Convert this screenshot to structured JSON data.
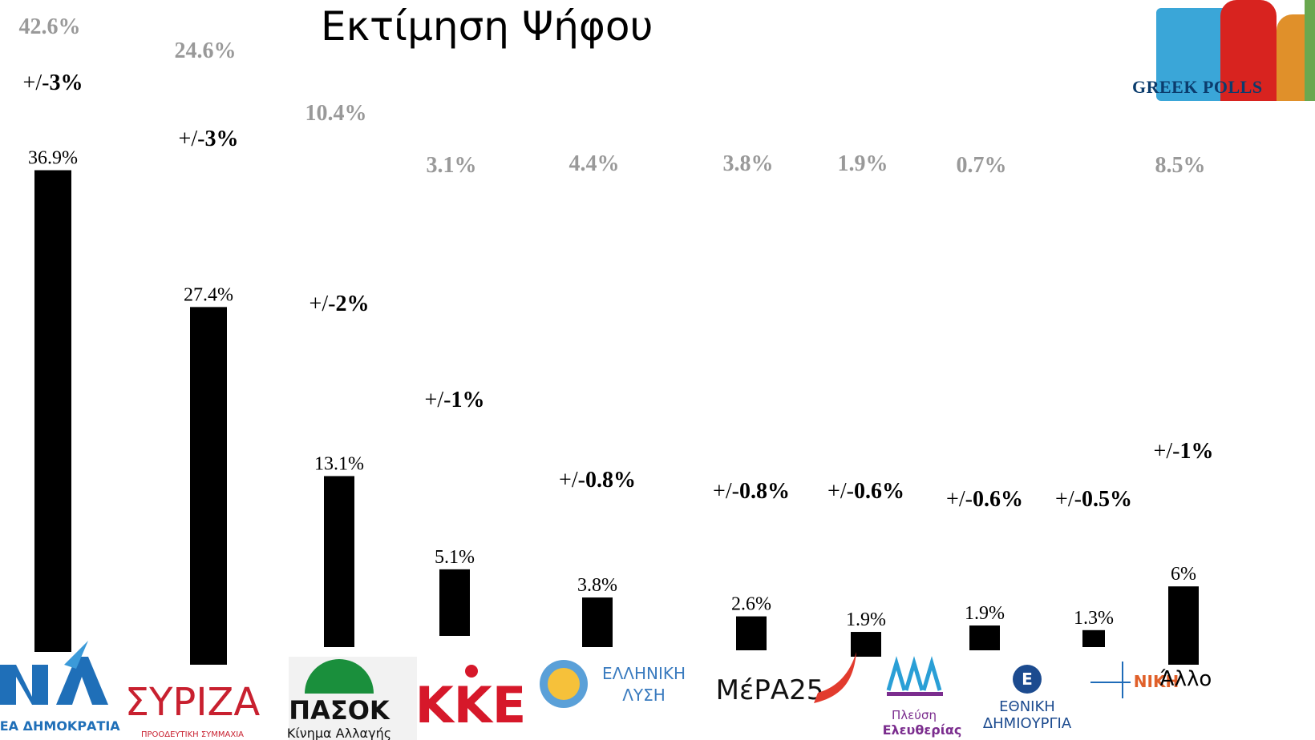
{
  "title": "Εκτίμηση Ψήφου",
  "brand": {
    "text": "GREEK POLLS"
  },
  "chart_data": {
    "type": "bar",
    "title": "Εκτίμηση Ψήφου",
    "categories": [
      "ΝΕΑ ΔΗΜΟΚΡΑΤΙΑ",
      "ΣΥΡΙΖΑ",
      "ΠΑΣΟΚ",
      "ΚΚΕ",
      "ΕΛΛΗΝΙΚΗ ΛΥΣΗ",
      "ΜέΡΑ25",
      "Πλεύση Ελευθερίας",
      "ΕΘΝΙΚΗ ΔΗΜΙΟΥΡΓΙΑ",
      "ΝΙΚΗ",
      "Άλλο"
    ],
    "values": [
      36.9,
      27.4,
      13.1,
      5.1,
      3.8,
      2.6,
      1.9,
      1.9,
      1.3,
      6
    ],
    "value_labels": [
      "36.9%",
      "27.4%",
      "13.1%",
      "5.1%",
      "3.8%",
      "2.6%",
      "1.9%",
      "1.9%",
      "1.3%",
      "6%"
    ],
    "margins": [
      "3%",
      "3%",
      "2%",
      "1%",
      "0.8%",
      "0.8%",
      "0.6%",
      "0.6%",
      "0.5%",
      "1%"
    ],
    "margin_prefix": "+/-",
    "previous_labels": [
      "42.6%",
      "24.6%",
      "10.4%",
      "3.1%",
      "4.4%",
      "3.8%",
      "1.9%",
      "0.7%",
      "",
      "8.5%"
    ],
    "colors": {
      "bar": "#000000",
      "previous": "#999999"
    },
    "logo_texts": {
      "nd": "ΝΕΑ ΔΗΜΟΚΡΑΤΙΑ",
      "syriza": "ΣΥΡΙΖΑ",
      "syriza_sub": "ΠΡΟΟΔΕΥΤΙΚΗ ΣΥΜΜΑΧΙΑ",
      "pasok": "ΠΑΣΟΚ",
      "pasok_sub": "Κίνημα Αλλαγής",
      "kke": "ΚΚΕ",
      "el1": "ΕΛΛΗΝΙΚΗ",
      "el2": "ΛΥΣΗ",
      "mera": "ΜέΡΑ25",
      "ple1": "Πλεύση",
      "ple2": "Ελευθερίας",
      "ed1": "ΕΘΝΙΚΗ",
      "ed2": "ΔΗΜΙΟΥΡΓΙΑ",
      "niki": "ΝΙΚΗ",
      "other": "Άλλο"
    }
  }
}
